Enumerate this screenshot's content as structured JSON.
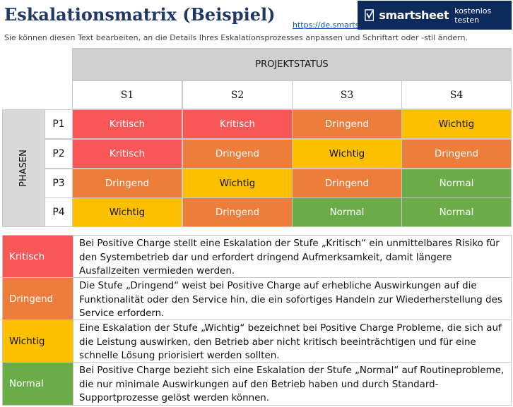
{
  "title": "Eskalationsmatrix (Beispiel)",
  "link": "https://de.smartsheet.com",
  "banner": {
    "brand": "smartsheet",
    "cta": "kostenlos testen",
    "bg_color": "#0d2a5c"
  },
  "subtitle": "Sie können diesen Text bearbeiten, an die Details Ihres Eskalationsprozesses anpassen und Schriftart oder -stil ändern.",
  "matrix": {
    "header": "PROJEKTSTATUS",
    "phase_label": "PHASEN",
    "columns": [
      "S1",
      "S2",
      "S3",
      "S4"
    ],
    "rows": [
      {
        "label": "P1",
        "cells": [
          "Kritisch",
          "Kritisch",
          "Dringend",
          "Wichtig"
        ]
      },
      {
        "label": "P2",
        "cells": [
          "Kritisch",
          "Dringend",
          "Wichtig",
          "Dringend"
        ]
      },
      {
        "label": "P3",
        "cells": [
          "Dringend",
          "Wichtig",
          "Dringend",
          "Normal"
        ]
      },
      {
        "label": "P4",
        "cells": [
          "Wichtig",
          "Dringend",
          "Normal",
          "Normal"
        ]
      }
    ]
  },
  "colors": {
    "Kritisch": "#f85757",
    "Dringend": "#ec7d3a",
    "Wichtig": "#fdc000",
    "Normal": "#6aad48"
  },
  "legend": [
    {
      "level": "Kritisch",
      "description": "Bei Positive Charge stellt eine Eskalation der Stufe „Kritisch“ ein unmittelbares Risiko für den Systembetrieb dar und erfordert dringend Aufmerksamkeit, damit längere Ausfallzeiten vermieden werden."
    },
    {
      "level": "Dringend",
      "description": "Die Stufe „Dringend“ weist bei Positive Charge auf erhebliche Auswirkungen auf die Funktionalität oder den Service hin, die ein sofortiges Handeln zur Wiederherstellung des Service erfordern."
    },
    {
      "level": "Wichtig",
      "description": "Eine Eskalation der Stufe „Wichtig“ bezeichnet bei Positive Charge Probleme, die sich auf die Leistung auswirken, den Betrieb aber nicht kritisch beeinträchtigen und für eine schnelle Lösung priorisiert werden sollten."
    },
    {
      "level": "Normal",
      "description": "Bei Positive Charge bezieht sich eine Eskalation der Stufe „Normal“ auf Routineprobleme, die nur minimale Auswirkungen auf den Betrieb haben und durch Standard-Supportprozesse gelöst werden können."
    }
  ]
}
